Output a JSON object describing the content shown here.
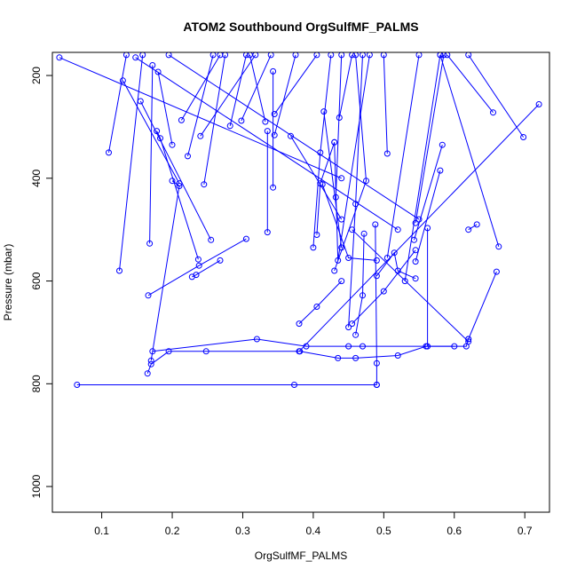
{
  "chart_data": {
    "type": "line",
    "title": "ATOM2 Southbound OrgSulfMF_PALMS",
    "xlabel": "OrgSulfMF_PALMS",
    "ylabel": "Pressure (mbar)",
    "xlim": [
      0.03,
      0.735
    ],
    "ylim": [
      1050,
      155
    ],
    "y_reversed": true,
    "grid": false,
    "legend": "none",
    "color": "#0000ff",
    "x_ticks": [
      {
        "value": 0.1,
        "label": "0.1"
      },
      {
        "value": 0.2,
        "label": "0.2"
      },
      {
        "value": 0.3,
        "label": "0.3"
      },
      {
        "value": 0.4,
        "label": "0.4"
      },
      {
        "value": 0.5,
        "label": "0.5"
      },
      {
        "value": 0.6,
        "label": "0.6"
      },
      {
        "value": 0.7,
        "label": "0.7"
      }
    ],
    "y_ticks": [
      {
        "value": 200,
        "label": "200"
      },
      {
        "value": 400,
        "label": "400"
      },
      {
        "value": 600,
        "label": "600"
      },
      {
        "value": 800,
        "label": "800"
      },
      {
        "value": 1000,
        "label": "1000"
      }
    ],
    "series": [
      {
        "points": [
          [
            0.065,
            802
          ],
          [
            0.373,
            802
          ],
          [
            0.49,
            802
          ]
        ]
      },
      {
        "points": [
          [
            0.165,
            780
          ],
          [
            0.17,
            762
          ],
          [
            0.195,
            737
          ],
          [
            0.248,
            737
          ],
          [
            0.381,
            737
          ],
          [
            0.435,
            750
          ],
          [
            0.46,
            750
          ],
          [
            0.52,
            745
          ],
          [
            0.56,
            727
          ],
          [
            0.617,
            727
          ],
          [
            0.62,
            713
          ]
        ]
      },
      {
        "points": [
          [
            0.172,
            737
          ],
          [
            0.32,
            713
          ],
          [
            0.39,
            727
          ],
          [
            0.45,
            727
          ],
          [
            0.47,
            727
          ],
          [
            0.6,
            727
          ]
        ]
      },
      {
        "points": [
          [
            0.17,
            755
          ],
          [
            0.21,
            415
          ],
          [
            0.2,
            405
          ]
        ]
      },
      {
        "points": [
          [
            0.166,
            628
          ],
          [
            0.238,
            570
          ],
          [
            0.305,
            518
          ]
        ]
      },
      {
        "points": [
          [
            0.168,
            527
          ],
          [
            0.172,
            180
          ]
        ]
      },
      {
        "points": [
          [
            0.125,
            580
          ],
          [
            0.158,
            160
          ]
        ]
      },
      {
        "points": [
          [
            0.228,
            592
          ],
          [
            0.234,
            588
          ],
          [
            0.268,
            560
          ]
        ]
      },
      {
        "points": [
          [
            0.11,
            350
          ],
          [
            0.135,
            160
          ]
        ]
      },
      {
        "points": [
          [
            0.13,
            210
          ],
          [
            0.21,
            410
          ]
        ]
      },
      {
        "points": [
          [
            0.155,
            250
          ],
          [
            0.255,
            520
          ]
        ]
      },
      {
        "points": [
          [
            0.18,
            193
          ],
          [
            0.2,
            335
          ]
        ]
      },
      {
        "points": [
          [
            0.178,
            308
          ],
          [
            0.183,
            322
          ],
          [
            0.237,
            558
          ]
        ]
      },
      {
        "points": [
          [
            0.213,
            287
          ],
          [
            0.268,
            160
          ]
        ]
      },
      {
        "points": [
          [
            0.222,
            357
          ],
          [
            0.258,
            160
          ]
        ]
      },
      {
        "points": [
          [
            0.24,
            318
          ],
          [
            0.318,
            160
          ]
        ]
      },
      {
        "points": [
          [
            0.245,
            412
          ],
          [
            0.275,
            160
          ]
        ]
      },
      {
        "points": [
          [
            0.282,
            298
          ],
          [
            0.305,
            160
          ]
        ]
      },
      {
        "points": [
          [
            0.298,
            288
          ],
          [
            0.34,
            160
          ]
        ]
      },
      {
        "points": [
          [
            0.332,
            290
          ],
          [
            0.31,
            160
          ]
        ]
      },
      {
        "points": [
          [
            0.335,
            308
          ],
          [
            0.335,
            505
          ]
        ]
      },
      {
        "points": [
          [
            0.343,
            192
          ],
          [
            0.343,
            418
          ]
        ]
      },
      {
        "points": [
          [
            0.345,
            275
          ],
          [
            0.405,
            160
          ]
        ]
      },
      {
        "points": [
          [
            0.345,
            316
          ],
          [
            0.375,
            160
          ]
        ]
      },
      {
        "points": [
          [
            0.368,
            318
          ],
          [
            0.44,
            480
          ]
        ]
      },
      {
        "points": [
          [
            0.4,
            535
          ],
          [
            0.41,
            350
          ],
          [
            0.425,
            160
          ]
        ]
      },
      {
        "points": [
          [
            0.405,
            510
          ],
          [
            0.41,
            410
          ],
          [
            0.43,
            330
          ]
        ]
      },
      {
        "points": [
          [
            0.415,
            270
          ],
          [
            0.44,
            535
          ]
        ]
      },
      {
        "points": [
          [
            0.43,
            330
          ],
          [
            0.435,
            560
          ],
          [
            0.48,
            160
          ]
        ]
      },
      {
        "points": [
          [
            0.432,
            437
          ],
          [
            0.44,
            160
          ]
        ]
      },
      {
        "points": [
          [
            0.437,
            282
          ],
          [
            0.455,
            160
          ]
        ]
      },
      {
        "points": [
          [
            0.43,
            580
          ],
          [
            0.475,
            405
          ],
          [
            0.46,
            160
          ]
        ]
      },
      {
        "points": [
          [
            0.45,
            690
          ],
          [
            0.46,
            450
          ],
          [
            0.47,
            160
          ]
        ]
      },
      {
        "points": [
          [
            0.472,
            508
          ],
          [
            0.47,
            628
          ],
          [
            0.46,
            705
          ]
        ]
      },
      {
        "points": [
          [
            0.488,
            490
          ],
          [
            0.49,
            760
          ],
          [
            0.49,
            802
          ]
        ]
      },
      {
        "points": [
          [
            0.505,
            555
          ],
          [
            0.55,
            160
          ]
        ]
      },
      {
        "points": [
          [
            0.49,
            590
          ],
          [
            0.515,
            545
          ],
          [
            0.52,
            580
          ],
          [
            0.545,
            595
          ]
        ]
      },
      {
        "points": [
          [
            0.505,
            352
          ],
          [
            0.5,
            160
          ]
        ]
      },
      {
        "points": [
          [
            0.53,
            600
          ],
          [
            0.58,
            160
          ]
        ]
      },
      {
        "points": [
          [
            0.545,
            487
          ],
          [
            0.585,
            160
          ]
        ]
      },
      {
        "points": [
          [
            0.543,
            520
          ],
          [
            0.583,
            335
          ]
        ]
      },
      {
        "points": [
          [
            0.545,
            562
          ],
          [
            0.58,
            385
          ]
        ]
      },
      {
        "points": [
          [
            0.562,
            497
          ],
          [
            0.562,
            727
          ]
        ]
      },
      {
        "points": [
          [
            0.632,
            490
          ],
          [
            0.62,
            500
          ]
        ]
      },
      {
        "points": [
          [
            0.655,
            272
          ],
          [
            0.59,
            160
          ]
        ]
      },
      {
        "points": [
          [
            0.698,
            320
          ],
          [
            0.62,
            160
          ]
        ]
      },
      {
        "points": [
          [
            0.72,
            256
          ],
          [
            0.38,
            737
          ]
        ]
      },
      {
        "points": [
          [
            0.663,
            533
          ],
          [
            0.58,
            160
          ]
        ]
      },
      {
        "points": [
          [
            0.66,
            582
          ],
          [
            0.62,
            713
          ]
        ]
      },
      {
        "points": [
          [
            0.04,
            165
          ],
          [
            0.44,
            400
          ]
        ]
      },
      {
        "points": [
          [
            0.148,
            165
          ],
          [
            0.52,
            500
          ]
        ]
      },
      {
        "points": [
          [
            0.195,
            160
          ],
          [
            0.55,
            480
          ]
        ]
      },
      {
        "points": [
          [
            0.38,
            683
          ],
          [
            0.405,
            650
          ],
          [
            0.44,
            600
          ]
        ]
      },
      {
        "points": [
          [
            0.455,
            683
          ],
          [
            0.5,
            620
          ],
          [
            0.545,
            540
          ]
        ]
      },
      {
        "points": [
          [
            0.413,
            412
          ],
          [
            0.45,
            555
          ],
          [
            0.49,
            560
          ]
        ]
      },
      {
        "points": [
          [
            0.455,
            500
          ],
          [
            0.62,
            718
          ]
        ]
      }
    ]
  }
}
